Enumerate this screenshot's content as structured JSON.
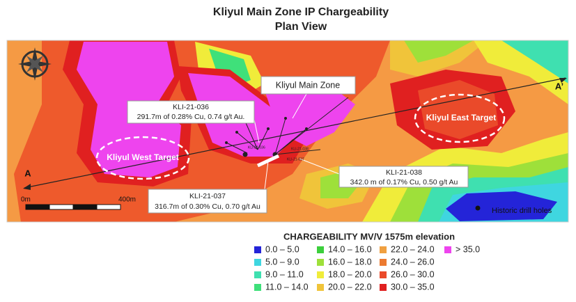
{
  "title": "Kliyul Main Zone IP Chargeability",
  "subtitle": "Plan View",
  "map": {
    "section_start": "A",
    "section_end": "A’",
    "zone_label": "Kliyul Main Zone",
    "west_target": "Kliyul West Target",
    "east_target": "Kliyul East Target",
    "callouts": [
      {
        "hole": "KLI-21-036",
        "text": "291.7m of 0.28% Cu, 0.74 g/t Au."
      },
      {
        "hole": "KLI-21-037",
        "text": "316.7m of 0.30% Cu, 0.70 g/t Au"
      },
      {
        "hole": "KLI-21-038",
        "text": "342.0 m of 0.17% Cu, 0.50 g/t Au"
      }
    ],
    "drill_labels": [
      "KLI-21-036",
      "KLI-21-038",
      "KLI-21-037"
    ],
    "scale_start": "0m",
    "scale_end": "400m",
    "historic_label": "Historic drill holes"
  },
  "legend": {
    "title": "CHARGEABILITY MV/V 1575m elevation",
    "items": [
      {
        "label": "0.0 – 5.0",
        "color": "#2424d8"
      },
      {
        "label": "5.0 – 9.0",
        "color": "#3fd6e0"
      },
      {
        "label": "9.0 – 11.0",
        "color": "#3fe0b0"
      },
      {
        "label": "11.0 – 14.0",
        "color": "#3fe07a"
      },
      {
        "label": "14.0 – 16.0",
        "color": "#3ccf3c"
      },
      {
        "label": "16.0 – 18.0",
        "color": "#9ee03a"
      },
      {
        "label": "18.0 – 20.0",
        "color": "#f0ec3a"
      },
      {
        "label": "20.0 – 22.0",
        "color": "#f0c43a"
      },
      {
        "label": "22.0 – 24.0",
        "color": "#f0a040"
      },
      {
        "label": "24.0 – 26.0",
        "color": "#ec7a30"
      },
      {
        "label": "26.0 – 30.0",
        "color": "#ea4a2a"
      },
      {
        "label": "30.0 – 35.0",
        "color": "#e02020"
      },
      {
        "label": "> 35.0",
        "color": "#ee44ee"
      }
    ]
  }
}
